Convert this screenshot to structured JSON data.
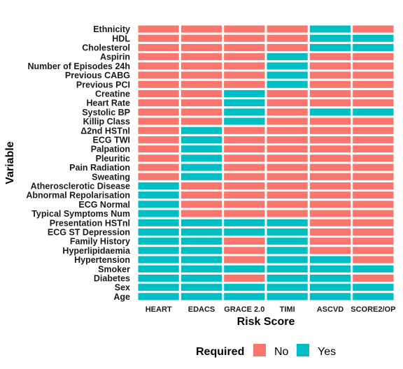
{
  "chart_data": {
    "type": "heatmap",
    "xlabel": "Risk Score",
    "ylabel": "Variable",
    "x_categories": [
      "HEART",
      "EDACS",
      "GRACE 2.0",
      "TIMI",
      "ASCVD",
      "SCORE2/OP"
    ],
    "y_categories": [
      "Ethnicity",
      "HDL",
      "Cholesterol",
      "Aspirin",
      "Number of Episodes 24h",
      "Previous CABG",
      "Previous PCI",
      "Creatine",
      "Heart Rate",
      "Systolic BP",
      "Killip Class",
      "Δ2nd HSTnl",
      "ECG TWI",
      "Palpation",
      "Pleuritic",
      "Pain Radiation",
      "Sweating",
      "Atherosclerotic Disease",
      "Abnormal Repolarisation",
      "ECG Normal",
      "Typical Symptoms Num",
      "Presentation HSTnl",
      "ECG ST Depression",
      "Family History",
      "Hyperlipidaemia",
      "Hypertension",
      "Smoker",
      "Diabetes",
      "Sex",
      "Age"
    ],
    "values": [
      [
        "No",
        "No",
        "No",
        "No",
        "Yes",
        "No"
      ],
      [
        "No",
        "No",
        "No",
        "No",
        "Yes",
        "Yes"
      ],
      [
        "No",
        "No",
        "No",
        "No",
        "Yes",
        "Yes"
      ],
      [
        "No",
        "No",
        "No",
        "Yes",
        "No",
        "No"
      ],
      [
        "No",
        "No",
        "No",
        "Yes",
        "No",
        "No"
      ],
      [
        "No",
        "No",
        "No",
        "Yes",
        "No",
        "No"
      ],
      [
        "No",
        "No",
        "No",
        "Yes",
        "No",
        "No"
      ],
      [
        "No",
        "No",
        "Yes",
        "No",
        "No",
        "No"
      ],
      [
        "No",
        "No",
        "Yes",
        "No",
        "No",
        "No"
      ],
      [
        "No",
        "No",
        "Yes",
        "No",
        "Yes",
        "Yes"
      ],
      [
        "No",
        "No",
        "Yes",
        "No",
        "No",
        "No"
      ],
      [
        "No",
        "Yes",
        "No",
        "No",
        "No",
        "No"
      ],
      [
        "No",
        "Yes",
        "No",
        "No",
        "No",
        "No"
      ],
      [
        "No",
        "Yes",
        "No",
        "No",
        "No",
        "No"
      ],
      [
        "No",
        "Yes",
        "No",
        "No",
        "No",
        "No"
      ],
      [
        "No",
        "Yes",
        "No",
        "No",
        "No",
        "No"
      ],
      [
        "No",
        "Yes",
        "No",
        "No",
        "No",
        "No"
      ],
      [
        "Yes",
        "No",
        "No",
        "No",
        "No",
        "No"
      ],
      [
        "Yes",
        "No",
        "No",
        "No",
        "No",
        "No"
      ],
      [
        "Yes",
        "No",
        "No",
        "No",
        "No",
        "No"
      ],
      [
        "Yes",
        "No",
        "No",
        "No",
        "No",
        "No"
      ],
      [
        "Yes",
        "Yes",
        "Yes",
        "Yes",
        "No",
        "No"
      ],
      [
        "Yes",
        "Yes",
        "Yes",
        "Yes",
        "No",
        "No"
      ],
      [
        "Yes",
        "Yes",
        "No",
        "Yes",
        "No",
        "No"
      ],
      [
        "Yes",
        "Yes",
        "No",
        "Yes",
        "No",
        "No"
      ],
      [
        "Yes",
        "Yes",
        "No",
        "Yes",
        "Yes",
        "No"
      ],
      [
        "Yes",
        "Yes",
        "Yes",
        "Yes",
        "Yes",
        "Yes"
      ],
      [
        "Yes",
        "Yes",
        "No",
        "Yes",
        "Yes",
        "No"
      ],
      [
        "Yes",
        "Yes",
        "Yes",
        "Yes",
        "Yes",
        "Yes"
      ],
      [
        "Yes",
        "Yes",
        "Yes",
        "Yes",
        "Yes",
        "Yes"
      ]
    ],
    "legend": {
      "title": "Required",
      "position": "bottom",
      "entries": [
        {
          "label": "No",
          "color": "#F8766D"
        },
        {
          "label": "Yes",
          "color": "#00BFC4"
        }
      ]
    },
    "grid": false
  }
}
